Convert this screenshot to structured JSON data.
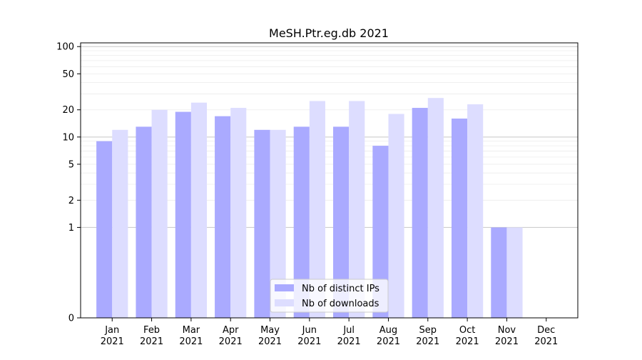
{
  "chart_data": {
    "type": "bar",
    "title": "MeSH.Ptr.eg.db 2021",
    "xlabel": "",
    "ylabel": "",
    "yscale": "symlog",
    "ylim": [
      0,
      110
    ],
    "yticks": [
      0,
      1,
      2,
      5,
      10,
      20,
      50,
      100
    ],
    "ytick_labels": [
      "0",
      "1",
      "2",
      "5",
      "10",
      "20",
      "50",
      "100"
    ],
    "grid": true,
    "legend_position": "bottom-center",
    "categories": [
      "Jan\n2021",
      "Feb\n2021",
      "Mar\n2021",
      "Apr\n2021",
      "May\n2021",
      "Jun\n2021",
      "Jul\n2021",
      "Aug\n2021",
      "Sep\n2021",
      "Oct\n2021",
      "Nov\n2021",
      "Dec\n2021"
    ],
    "category_lines": [
      [
        "Jan",
        "2021"
      ],
      [
        "Feb",
        "2021"
      ],
      [
        "Mar",
        "2021"
      ],
      [
        "Apr",
        "2021"
      ],
      [
        "May",
        "2021"
      ],
      [
        "Jun",
        "2021"
      ],
      [
        "Jul",
        "2021"
      ],
      [
        "Aug",
        "2021"
      ],
      [
        "Sep",
        "2021"
      ],
      [
        "Oct",
        "2021"
      ],
      [
        "Nov",
        "2021"
      ],
      [
        "Dec",
        "2021"
      ]
    ],
    "series": [
      {
        "name": "Nb of distinct IPs",
        "color": "#aaaaff",
        "values": [
          9,
          13,
          19,
          17,
          12,
          13,
          13,
          8,
          21,
          16,
          1,
          0
        ]
      },
      {
        "name": "Nb of downloads",
        "color": "#ddddff",
        "values": [
          12,
          20,
          24,
          21,
          12,
          25,
          25,
          18,
          27,
          23,
          1,
          0
        ]
      }
    ]
  }
}
